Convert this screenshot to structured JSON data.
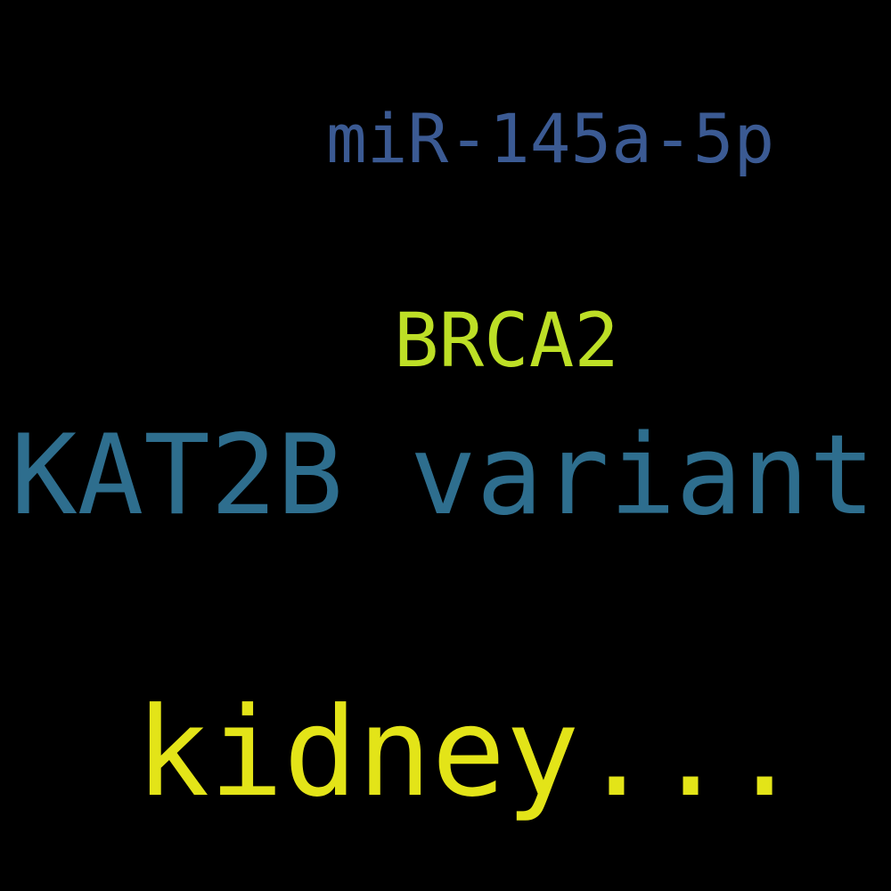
{
  "words": [
    {
      "text": "miR-145a-5p",
      "color": "#3b5a93"
    },
    {
      "text": "BRCA2",
      "color": "#bddf26"
    },
    {
      "text": "KAT2B variant",
      "color": "#2e6e8e"
    },
    {
      "text": "kidney...",
      "color": "#e3e418"
    }
  ]
}
